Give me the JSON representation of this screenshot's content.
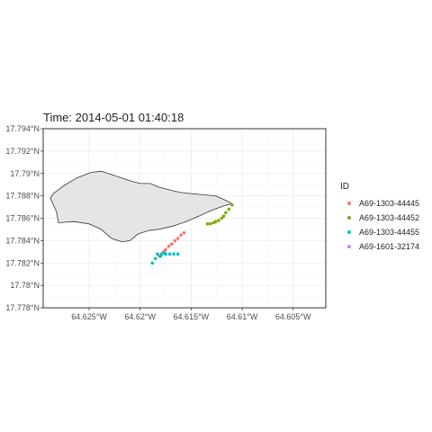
{
  "chart_data": {
    "type": "scatter",
    "title": "Time: 2014-05-01 01:40:18",
    "xlabel": "",
    "ylabel": "",
    "xlim": [
      -64.6295,
      -64.6018
    ],
    "ylim": [
      17.778,
      17.794
    ],
    "x_ticks": [
      -64.625,
      -64.62,
      -64.615,
      -64.61,
      -64.605
    ],
    "x_tick_labels": [
      "64.625°W",
      "64.62°W",
      "64.615°W",
      "64.61°W",
      "64.605°W"
    ],
    "y_ticks": [
      17.778,
      17.78,
      17.782,
      17.784,
      17.786,
      17.788,
      17.79,
      17.792,
      17.794
    ],
    "y_tick_labels": [
      "17.778°N",
      "17.78°N",
      "17.782°N",
      "17.784°N",
      "17.786°N",
      "17.788°N",
      "17.79°N",
      "17.792°N",
      "17.794°N"
    ],
    "grid": true,
    "legend": {
      "title": "ID",
      "position": "right",
      "entries": [
        {
          "name": "A69-1303-44445",
          "color": "#F8766D"
        },
        {
          "name": "A69-1303-44452",
          "color": "#7CAE00"
        },
        {
          "name": "A69-1303-44455",
          "color": "#00BFC4"
        },
        {
          "name": "A69-1601-32174",
          "color": "#C77CFF"
        }
      ]
    },
    "land": {
      "fill": "#e5e5e5",
      "stroke": "#333333",
      "outline": [
        [
          -64.6285,
          17.7882
        ],
        [
          -64.6275,
          17.7889
        ],
        [
          -64.6262,
          17.7896
        ],
        [
          -64.6248,
          17.7901
        ],
        [
          -64.6238,
          17.7902
        ],
        [
          -64.6228,
          17.7899
        ],
        [
          -64.6218,
          17.7896
        ],
        [
          -64.6208,
          17.7893
        ],
        [
          -64.62,
          17.7891
        ],
        [
          -64.619,
          17.7891
        ],
        [
          -64.6182,
          17.7888
        ],
        [
          -64.617,
          17.7885
        ],
        [
          -64.616,
          17.7883
        ],
        [
          -64.615,
          17.7882
        ],
        [
          -64.6138,
          17.7881
        ],
        [
          -64.6126,
          17.788
        ],
        [
          -64.6116,
          17.7876
        ],
        [
          -64.611,
          17.7873
        ],
        [
          -64.6118,
          17.7871
        ],
        [
          -64.613,
          17.7867
        ],
        [
          -64.6142,
          17.7862
        ],
        [
          -64.6155,
          17.7857
        ],
        [
          -64.6168,
          17.7853
        ],
        [
          -64.6182,
          17.785
        ],
        [
          -64.6192,
          17.7849
        ],
        [
          -64.6202,
          17.7846
        ],
        [
          -64.621,
          17.784
        ],
        [
          -64.6218,
          17.7839
        ],
        [
          -64.6228,
          17.7842
        ],
        [
          -64.6238,
          17.785
        ],
        [
          -64.625,
          17.7855
        ],
        [
          -64.6265,
          17.7857
        ],
        [
          -64.628,
          17.7856
        ],
        [
          -64.6282,
          17.7866
        ],
        [
          -64.6288,
          17.7878
        ]
      ]
    },
    "series": [
      {
        "name": "A69-1303-44445",
        "color": "#F8766D",
        "x": [
          -64.6157,
          -64.616,
          -64.6163,
          -64.6166,
          -64.6169,
          -64.6172,
          -64.6175,
          -64.6177,
          -64.6179,
          -64.6181
        ],
        "y": [
          17.7847,
          17.7845,
          17.7842,
          17.784,
          17.7837,
          17.7835,
          17.7832,
          17.783,
          17.7828,
          17.7826
        ]
      },
      {
        "name": "A69-1303-44452",
        "color": "#7CAE00",
        "x": [
          -64.611,
          -64.6113,
          -64.6116,
          -64.6118,
          -64.612,
          -64.6123,
          -64.6126,
          -64.6128,
          -64.6131,
          -64.6134
        ],
        "y": [
          17.7872,
          17.7868,
          17.7865,
          17.7862,
          17.786,
          17.7858,
          17.7857,
          17.7856,
          17.7855,
          17.7855
        ]
      },
      {
        "name": "A69-1303-44455",
        "color": "#00BFC4",
        "x": [
          -64.6183,
          -64.6179,
          -64.6175,
          -64.6171,
          -64.6167,
          -64.6163,
          -64.6185,
          -64.6188,
          -64.618,
          -64.6176
        ],
        "y": [
          17.7828,
          17.7828,
          17.7828,
          17.7828,
          17.7828,
          17.7828,
          17.7824,
          17.782,
          17.7826,
          17.7829
        ]
      },
      {
        "name": "A69-1601-32174",
        "color": "#C77CFF",
        "x": [],
        "y": []
      }
    ]
  }
}
